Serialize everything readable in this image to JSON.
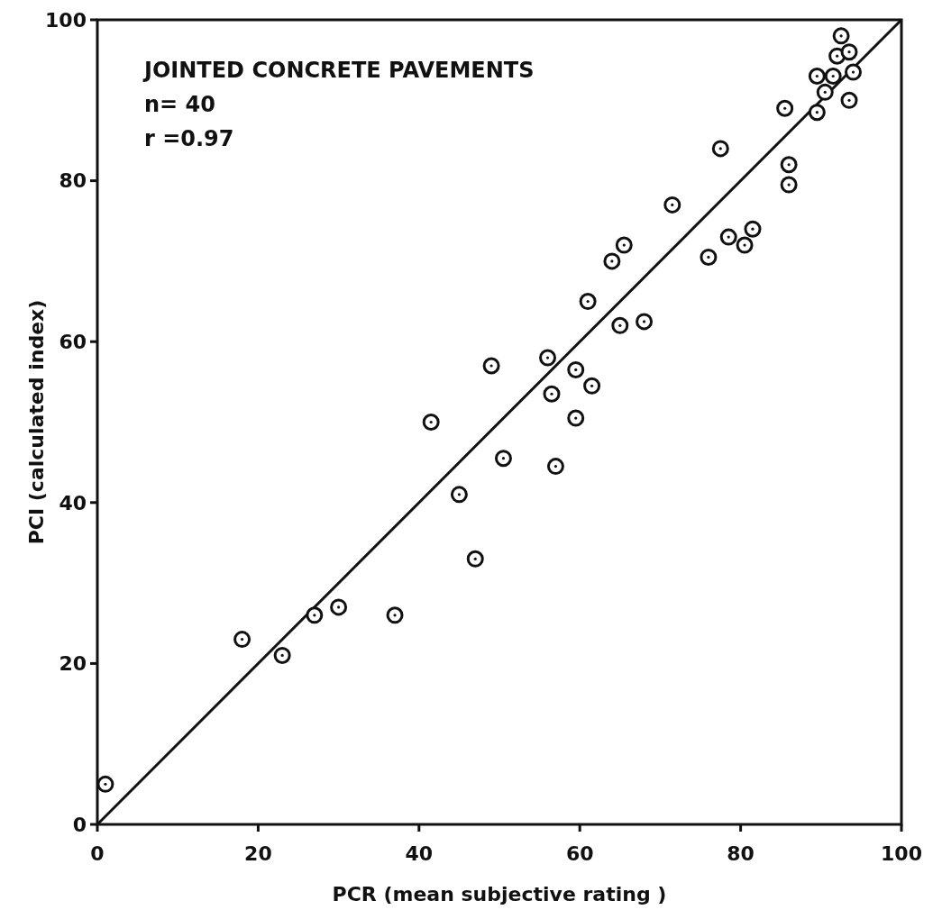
{
  "chart_data": {
    "type": "scatter",
    "xlabel": "PCR (mean subjective rating )",
    "ylabel": "PCI (calculated index)",
    "annotations": [
      "JOINTED CONCRETE PAVEMENTS",
      "n= 40",
      "r =0.97"
    ],
    "xlim": [
      0,
      100
    ],
    "ylim": [
      0,
      100
    ],
    "xticks": [
      0,
      20,
      40,
      60,
      80,
      100
    ],
    "yticks": [
      0,
      20,
      40,
      60,
      80,
      100
    ],
    "grid": false,
    "series": [
      {
        "marker": "circle",
        "color": "#111111",
        "x": [
          1,
          18,
          23,
          27,
          30,
          37,
          41.5,
          45,
          47,
          49,
          50.5,
          57,
          56,
          59.5,
          61.5,
          56.5,
          59.5,
          61,
          65,
          68,
          64,
          65.5,
          71.5,
          77.5,
          76,
          78.5,
          80.5,
          81.5,
          86,
          86,
          92.5,
          92,
          93.5,
          94,
          89.5,
          91.5,
          90.5,
          93.5,
          89.5,
          85.5
        ],
        "values": [
          5,
          23,
          21,
          26,
          27,
          26,
          50,
          41,
          33,
          57,
          45.5,
          44.5,
          58,
          56.5,
          54.5,
          53.5,
          50.5,
          65,
          62,
          62.5,
          70,
          72,
          77,
          84,
          70.5,
          73,
          72,
          74,
          82,
          79.5,
          98,
          95.5,
          96,
          93.5,
          93,
          93,
          91,
          90,
          88.5,
          89
        ]
      },
      {
        "type": "line",
        "color": "#111111",
        "x": [
          0,
          100
        ],
        "values": [
          0,
          100
        ],
        "line_style": "solid"
      }
    ]
  }
}
